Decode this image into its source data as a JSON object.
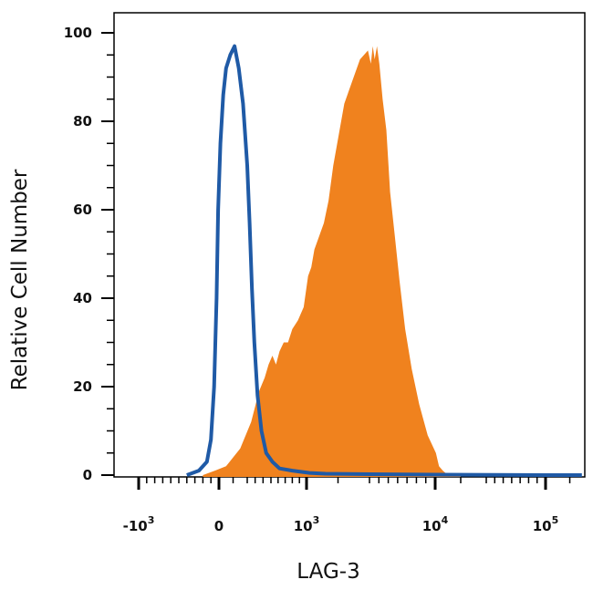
{
  "chart_data": {
    "type": "area",
    "title": "",
    "xlabel": "LAG-3",
    "ylabel": "Relative Cell Number",
    "ylim": [
      0,
      100
    ],
    "y_ticks": [
      0,
      20,
      40,
      60,
      80,
      100
    ],
    "x_scale": "biexponential",
    "x_ticks": [
      {
        "base": "-10",
        "exp": "3",
        "value": -1000
      },
      {
        "base": "0",
        "exp": "",
        "value": 0
      },
      {
        "base": "10",
        "exp": "3",
        "value": 1000
      },
      {
        "base": "10",
        "exp": "4",
        "value": 10000
      },
      {
        "base": "10",
        "exp": "5",
        "value": 100000
      }
    ],
    "grid": false,
    "legend": "none",
    "series": [
      {
        "style": "filled",
        "color": "#f0821e",
        "points": [
          [
            -200,
            0
          ],
          [
            -50,
            1
          ],
          [
            50,
            2
          ],
          [
            150,
            6
          ],
          [
            250,
            12
          ],
          [
            350,
            19
          ],
          [
            420,
            22
          ],
          [
            470,
            25
          ],
          [
            520,
            27
          ],
          [
            570,
            25
          ],
          [
            620,
            28
          ],
          [
            680,
            30
          ],
          [
            740,
            30
          ],
          [
            800,
            33
          ],
          [
            880,
            35
          ],
          [
            960,
            38
          ],
          [
            1050,
            45
          ],
          [
            1150,
            47
          ],
          [
            1250,
            51
          ],
          [
            1400,
            54
          ],
          [
            1550,
            57
          ],
          [
            1700,
            62
          ],
          [
            1850,
            70
          ],
          [
            2000,
            76
          ],
          [
            2200,
            84
          ],
          [
            2450,
            89
          ],
          [
            2700,
            94
          ],
          [
            2950,
            96
          ],
          [
            3150,
            93
          ],
          [
            3350,
            97
          ],
          [
            3550,
            94
          ],
          [
            3800,
            97
          ],
          [
            4050,
            93
          ],
          [
            4400,
            85
          ],
          [
            4800,
            78
          ],
          [
            5200,
            64
          ],
          [
            5700,
            54
          ],
          [
            6200,
            44
          ],
          [
            6800,
            33
          ],
          [
            7500,
            24
          ],
          [
            8300,
            16
          ],
          [
            9200,
            9
          ],
          [
            10300,
            5
          ],
          [
            11500,
            2
          ],
          [
            13000,
            1
          ],
          [
            15000,
            0
          ],
          [
            20000,
            0
          ]
        ]
      },
      {
        "style": "outline",
        "color": "#1f5aa6",
        "points": [
          [
            -400,
            0
          ],
          [
            -250,
            1
          ],
          [
            -150,
            3
          ],
          [
            -100,
            8
          ],
          [
            -60,
            20
          ],
          [
            -30,
            40
          ],
          [
            -10,
            60
          ],
          [
            10,
            75
          ],
          [
            30,
            86
          ],
          [
            50,
            92
          ],
          [
            80,
            95
          ],
          [
            110,
            97
          ],
          [
            140,
            92
          ],
          [
            170,
            84
          ],
          [
            200,
            70
          ],
          [
            230,
            57
          ],
          [
            260,
            42
          ],
          [
            290,
            30
          ],
          [
            330,
            18
          ],
          [
            380,
            10
          ],
          [
            440,
            5
          ],
          [
            520,
            3
          ],
          [
            620,
            1.5
          ],
          [
            800,
            1
          ],
          [
            1100,
            0.5
          ],
          [
            1600,
            0.3
          ],
          [
            3000,
            0.2
          ],
          [
            10000,
            0.1
          ],
          [
            100000,
            0
          ],
          [
            250000,
            0
          ]
        ]
      }
    ]
  }
}
